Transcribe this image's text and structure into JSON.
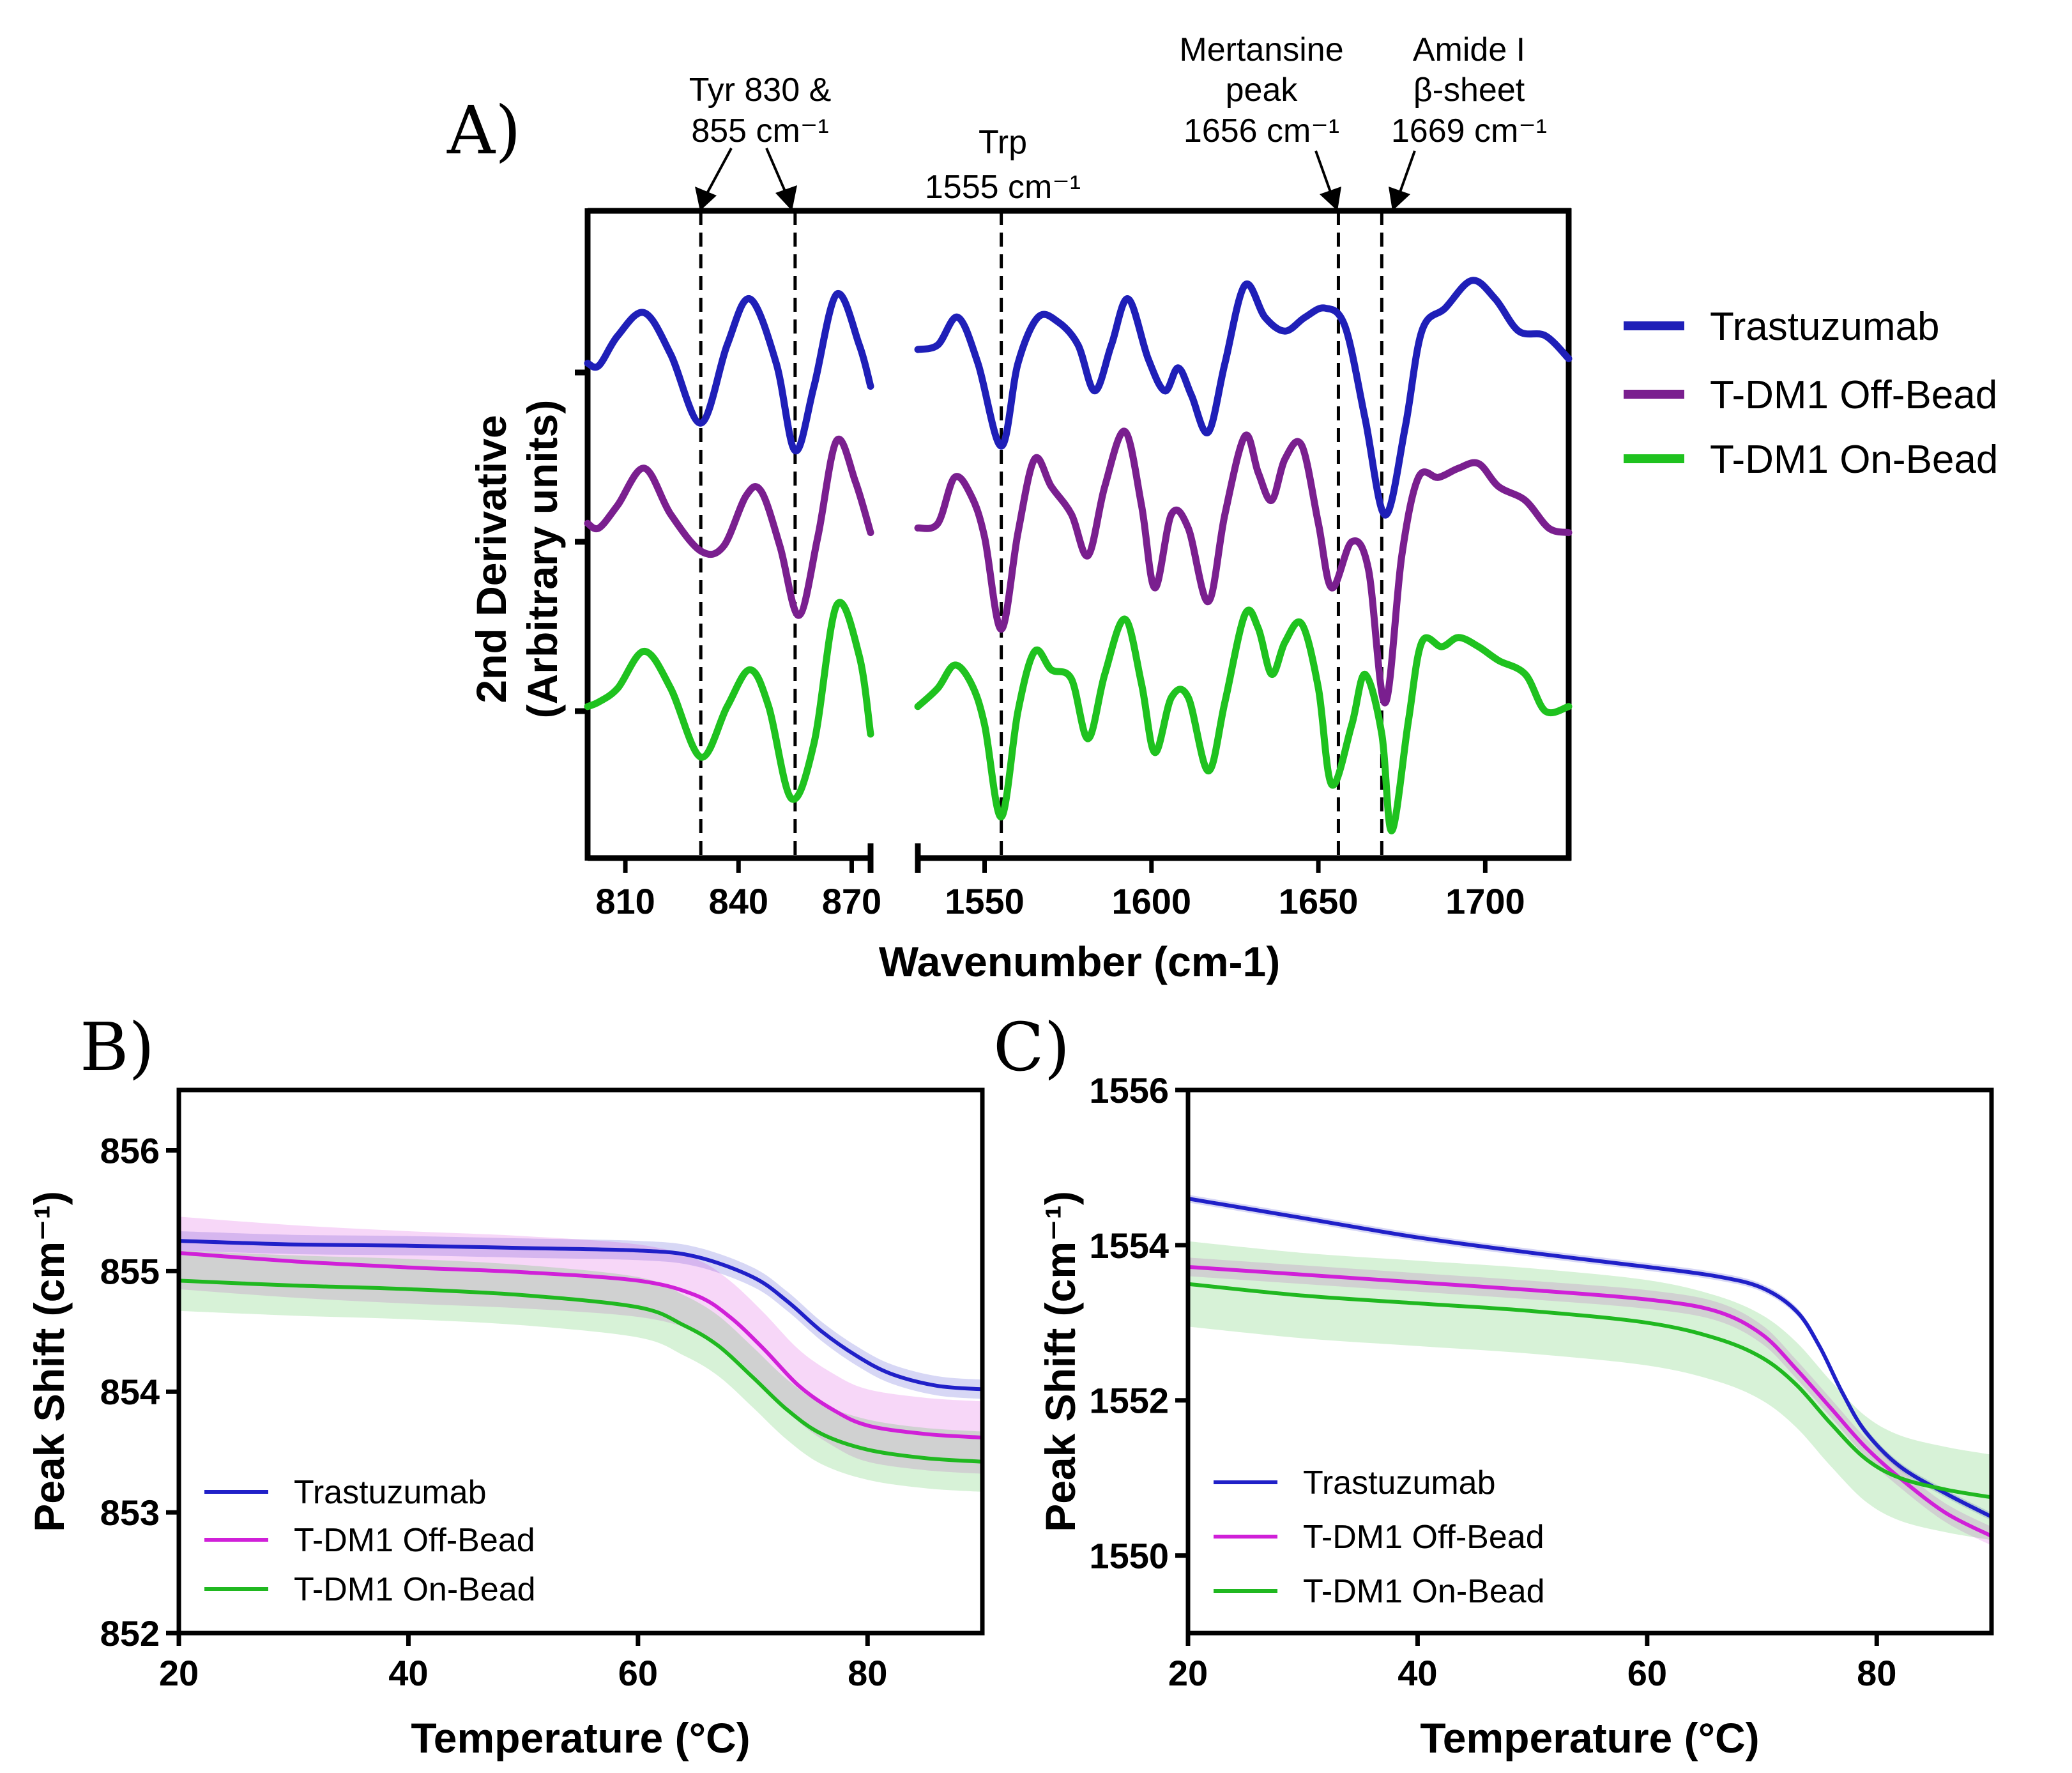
{
  "chart_data": [
    {
      "panel": "A)",
      "type": "line",
      "ylabel": "2nd Derivative",
      "ylabel2": "(Arbitrary units)",
      "xlabel": "Wavenumber (cm-1)",
      "x_segments": [
        {
          "xlim": [
            800,
            875
          ],
          "ticks": [
            "810",
            "840",
            "870"
          ]
        },
        {
          "xlim": [
            1530,
            1725
          ],
          "ticks": [
            "1550",
            "1600",
            "1650",
            "1700"
          ]
        }
      ],
      "annotations": [
        {
          "lines": [
            "Tyr 830 &",
            "855 cm⁻¹"
          ],
          "x": [
            830,
            855
          ]
        },
        {
          "lines": [
            "Trp",
            "1555 cm⁻¹"
          ],
          "x": [
            1555
          ]
        },
        {
          "lines": [
            "Mertansine",
            "peak",
            "1656 cm⁻¹"
          ],
          "x": [
            1656
          ]
        },
        {
          "lines": [
            "Amide I",
            "β-sheet",
            "1669 cm⁻¹"
          ],
          "x": [
            1669
          ]
        }
      ],
      "series": [
        {
          "name": "Trastuzumab",
          "color": "#1f1fb8",
          "offset": 0,
          "seg1": [
            [
              800,
              0.2
            ],
            [
              803,
              0.15
            ],
            [
              808,
              0.8
            ],
            [
              815,
              1.3
            ],
            [
              822,
              0.4
            ],
            [
              830,
              -1.1
            ],
            [
              837,
              0.6
            ],
            [
              843,
              1.6
            ],
            [
              850,
              0.2
            ],
            [
              855,
              -1.7
            ],
            [
              860,
              -0.3
            ],
            [
              866,
              1.7
            ],
            [
              872,
              0.6
            ],
            [
              875,
              -0.3
            ]
          ],
          "seg2": [
            [
              1530,
              0.5
            ],
            [
              1536,
              0.6
            ],
            [
              1542,
              1.2
            ],
            [
              1548,
              0.2
            ],
            [
              1555,
              -1.6
            ],
            [
              1560,
              0.2
            ],
            [
              1566,
              1.2
            ],
            [
              1572,
              1.1
            ],
            [
              1578,
              0.6
            ],
            [
              1583,
              -0.4
            ],
            [
              1588,
              0.6
            ],
            [
              1593,
              1.6
            ],
            [
              1599,
              0.3
            ],
            [
              1604,
              -0.4
            ],
            [
              1608,
              0.1
            ],
            [
              1612,
              -0.5
            ],
            [
              1617,
              -1.3
            ],
            [
              1622,
              0.2
            ],
            [
              1628,
              1.9
            ],
            [
              1634,
              1.2
            ],
            [
              1640,
              0.9
            ],
            [
              1646,
              1.2
            ],
            [
              1652,
              1.4
            ],
            [
              1658,
              1.0
            ],
            [
              1664,
              -1.0
            ],
            [
              1670,
              -3.1
            ],
            [
              1676,
              -1.2
            ],
            [
              1681,
              0.9
            ],
            [
              1688,
              1.4
            ],
            [
              1696,
              2.0
            ],
            [
              1703,
              1.6
            ],
            [
              1710,
              0.9
            ],
            [
              1718,
              0.8
            ],
            [
              1725,
              0.3
            ]
          ]
        },
        {
          "name": "T-DM1 Off-Bead",
          "color": "#7a1f8f",
          "offset": -1,
          "seg1": [
            [
              800,
              0.4
            ],
            [
              803,
              0.3
            ],
            [
              808,
              0.8
            ],
            [
              815,
              1.6
            ],
            [
              822,
              0.6
            ],
            [
              830,
              -0.2
            ],
            [
              836,
              -0.1
            ],
            [
              842,
              1.0
            ],
            [
              846,
              1.1
            ],
            [
              851,
              -0.1
            ],
            [
              856,
              -1.6
            ],
            [
              861,
              0.1
            ],
            [
              866,
              2.2
            ],
            [
              871,
              1.3
            ],
            [
              875,
              0.2
            ]
          ],
          "seg2": [
            [
              1530,
              0.3
            ],
            [
              1536,
              0.4
            ],
            [
              1541,
              1.4
            ],
            [
              1546,
              1.0
            ],
            [
              1550,
              0.1
            ],
            [
              1555,
              -1.9
            ],
            [
              1560,
              0.2
            ],
            [
              1565,
              1.8
            ],
            [
              1570,
              1.2
            ],
            [
              1576,
              0.6
            ],
            [
              1581,
              -0.3
            ],
            [
              1586,
              1.2
            ],
            [
              1592,
              2.4
            ],
            [
              1597,
              0.8
            ],
            [
              1601,
              -1.0
            ],
            [
              1606,
              0.6
            ],
            [
              1611,
              0.3
            ],
            [
              1617,
              -1.3
            ],
            [
              1622,
              0.6
            ],
            [
              1628,
              2.3
            ],
            [
              1632,
              1.5
            ],
            [
              1636,
              0.9
            ],
            [
              1640,
              1.8
            ],
            [
              1645,
              2.1
            ],
            [
              1650,
              0.4
            ],
            [
              1654,
              -1.0
            ],
            [
              1660,
              0.0
            ],
            [
              1665,
              -0.6
            ],
            [
              1670,
              -3.5
            ],
            [
              1675,
              -0.3
            ],
            [
              1680,
              1.4
            ],
            [
              1686,
              1.4
            ],
            [
              1692,
              1.6
            ],
            [
              1698,
              1.7
            ],
            [
              1704,
              1.2
            ],
            [
              1712,
              0.9
            ],
            [
              1719,
              0.3
            ],
            [
              1725,
              0.2
            ]
          ]
        },
        {
          "name": "T-DM1 On-Bead",
          "color": "#1fc21f",
          "offset": -2,
          "seg1": [
            [
              800,
              0.1
            ],
            [
              803,
              0.2
            ],
            [
              808,
              0.5
            ],
            [
              815,
              1.3
            ],
            [
              822,
              0.5
            ],
            [
              830,
              -1.0
            ],
            [
              837,
              0.1
            ],
            [
              843,
              0.9
            ],
            [
              848,
              0.1
            ],
            [
              854,
              -1.9
            ],
            [
              860,
              -0.7
            ],
            [
              866,
              2.3
            ],
            [
              872,
              1.2
            ],
            [
              875,
              -0.5
            ]
          ],
          "seg2": [
            [
              1530,
              0.1
            ],
            [
              1536,
              0.5
            ],
            [
              1541,
              1.0
            ],
            [
              1546,
              0.6
            ],
            [
              1550,
              -0.3
            ],
            [
              1555,
              -2.3
            ],
            [
              1560,
              0.0
            ],
            [
              1565,
              1.3
            ],
            [
              1570,
              0.9
            ],
            [
              1576,
              0.7
            ],
            [
              1581,
              -0.6
            ],
            [
              1586,
              0.8
            ],
            [
              1592,
              2.0
            ],
            [
              1597,
              0.6
            ],
            [
              1601,
              -0.9
            ],
            [
              1606,
              0.3
            ],
            [
              1611,
              0.3
            ],
            [
              1617,
              -1.3
            ],
            [
              1622,
              0.2
            ],
            [
              1628,
              2.1
            ],
            [
              1632,
              1.8
            ],
            [
              1636,
              0.8
            ],
            [
              1640,
              1.5
            ],
            [
              1645,
              1.9
            ],
            [
              1650,
              0.5
            ],
            [
              1654,
              -1.6
            ],
            [
              1660,
              -0.3
            ],
            [
              1664,
              0.8
            ],
            [
              1669,
              -0.5
            ],
            [
              1672,
              -2.6
            ],
            [
              1677,
              -0.2
            ],
            [
              1681,
              1.5
            ],
            [
              1687,
              1.4
            ],
            [
              1692,
              1.6
            ],
            [
              1698,
              1.4
            ],
            [
              1704,
              1.1
            ],
            [
              1712,
              0.8
            ],
            [
              1718,
              0.0
            ],
            [
              1725,
              0.1
            ]
          ]
        }
      ],
      "legend": [
        "Trastuzumab",
        "T-DM1 Off-Bead",
        "T-DM1 On-Bead"
      ]
    },
    {
      "panel": "B)",
      "type": "line",
      "xlabel": "Temperature (°C)",
      "ylabel": "Peak Shift (cm⁻¹)",
      "xlim": [
        20,
        90
      ],
      "ylim": [
        852,
        856.5
      ],
      "xticks": [
        "20",
        "40",
        "60",
        "80"
      ],
      "yticks": [
        "852",
        "853",
        "854",
        "855",
        "856"
      ],
      "series": [
        {
          "name": "Trastuzumab",
          "color": "#2020c8",
          "band": 0.08,
          "points": [
            [
              20,
              855.25
            ],
            [
              30,
              855.22
            ],
            [
              40,
              855.21
            ],
            [
              50,
              855.19
            ],
            [
              60,
              855.17
            ],
            [
              65,
              855.12
            ],
            [
              70,
              854.95
            ],
            [
              73,
              854.75
            ],
            [
              76,
              854.5
            ],
            [
              79,
              854.3
            ],
            [
              82,
              854.15
            ],
            [
              86,
              854.05
            ],
            [
              90,
              854.02
            ]
          ]
        },
        {
          "name": "T-DM1 Off-Bead",
          "color": "#d020d8",
          "band": 0.3,
          "points": [
            [
              20,
              855.15
            ],
            [
              30,
              855.08
            ],
            [
              40,
              855.03
            ],
            [
              50,
              854.99
            ],
            [
              60,
              854.92
            ],
            [
              65,
              854.8
            ],
            [
              68,
              854.62
            ],
            [
              71,
              854.35
            ],
            [
              74,
              854.05
            ],
            [
              77,
              853.85
            ],
            [
              80,
              853.72
            ],
            [
              85,
              853.65
            ],
            [
              90,
              853.62
            ]
          ]
        },
        {
          "name": "T-DM1 On-Bead",
          "color": "#20b820",
          "band": 0.25,
          "points": [
            [
              20,
              854.92
            ],
            [
              30,
              854.88
            ],
            [
              40,
              854.85
            ],
            [
              50,
              854.8
            ],
            [
              60,
              854.7
            ],
            [
              64,
              854.55
            ],
            [
              67,
              854.38
            ],
            [
              70,
              854.12
            ],
            [
              73,
              853.85
            ],
            [
              76,
              853.65
            ],
            [
              80,
              853.52
            ],
            [
              85,
              853.45
            ],
            [
              90,
              853.42
            ]
          ]
        }
      ],
      "legend": [
        "Trastuzumab",
        "T-DM1 Off-Bead",
        "T-DM1 On-Bead"
      ]
    },
    {
      "panel": "C)",
      "type": "line",
      "xlabel": "Temperature (°C)",
      "ylabel": "Peak Shift (cm⁻¹)",
      "xlim": [
        20,
        90
      ],
      "ylim": [
        1549,
        1556
      ],
      "xticks": [
        "20",
        "40",
        "60",
        "80"
      ],
      "yticks": [
        "1550",
        "1552",
        "1554",
        "1556"
      ],
      "series": [
        {
          "name": "Trastuzumab",
          "color": "#2020c8",
          "band": 0.05,
          "points": [
            [
              20,
              1554.6
            ],
            [
              30,
              1554.35
            ],
            [
              40,
              1554.1
            ],
            [
              50,
              1553.9
            ],
            [
              60,
              1553.72
            ],
            [
              66,
              1553.6
            ],
            [
              70,
              1553.45
            ],
            [
              73,
              1553.15
            ],
            [
              75,
              1552.7
            ],
            [
              77,
              1552.1
            ],
            [
              79,
              1551.6
            ],
            [
              82,
              1551.15
            ],
            [
              86,
              1550.8
            ],
            [
              90,
              1550.5
            ]
          ]
        },
        {
          "name": "T-DM1 Off-Bead",
          "color": "#d020d8",
          "band": 0.12,
          "points": [
            [
              20,
              1553.72
            ],
            [
              30,
              1553.62
            ],
            [
              40,
              1553.52
            ],
            [
              50,
              1553.42
            ],
            [
              60,
              1553.3
            ],
            [
              66,
              1553.15
            ],
            [
              70,
              1552.85
            ],
            [
              73,
              1552.4
            ],
            [
              76,
              1551.9
            ],
            [
              79,
              1551.4
            ],
            [
              82,
              1551.0
            ],
            [
              86,
              1550.55
            ],
            [
              90,
              1550.25
            ]
          ]
        },
        {
          "name": "T-DM1 On-Bead",
          "color": "#20b820",
          "band": 0.55,
          "points": [
            [
              20,
              1553.5
            ],
            [
              30,
              1553.35
            ],
            [
              40,
              1553.25
            ],
            [
              50,
              1553.15
            ],
            [
              60,
              1553.0
            ],
            [
              66,
              1552.8
            ],
            [
              70,
              1552.55
            ],
            [
              73,
              1552.2
            ],
            [
              76,
              1551.7
            ],
            [
              79,
              1551.25
            ],
            [
              82,
              1551.0
            ],
            [
              86,
              1550.85
            ],
            [
              90,
              1550.75
            ]
          ]
        }
      ],
      "legend": [
        "Trastuzumab",
        "T-DM1 Off-Bead",
        "T-DM1 On-Bead"
      ]
    }
  ]
}
